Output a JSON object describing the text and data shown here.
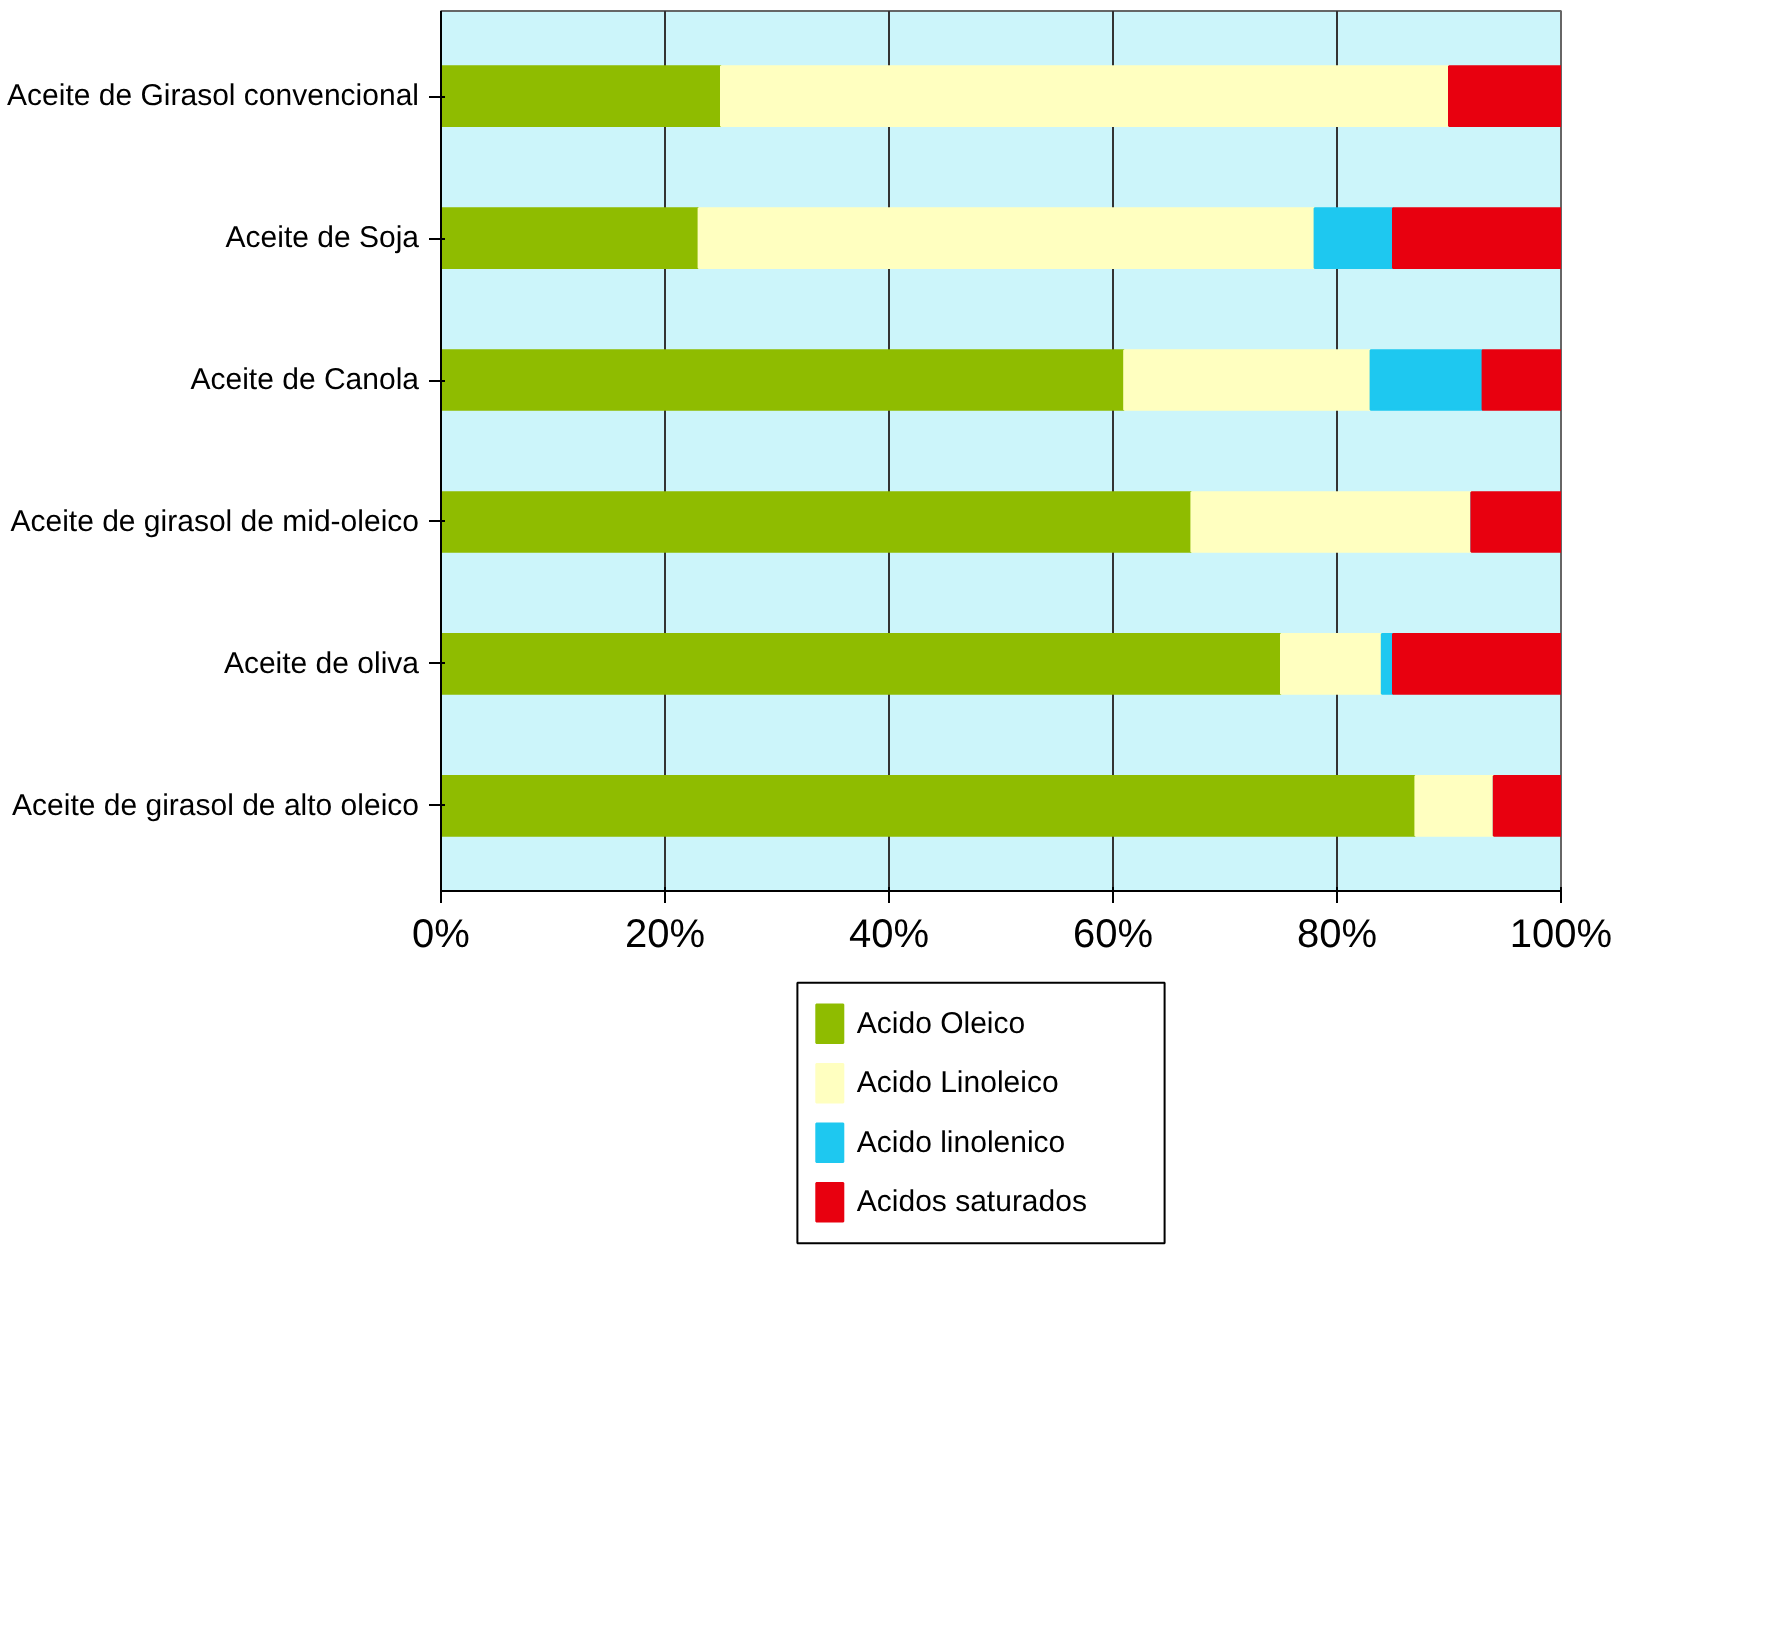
{
  "chart_data": {
    "type": "bar",
    "orientation": "horizontal",
    "stacked": true,
    "categories": [
      "Aceite de Girasol convencional",
      "Aceite de Soja",
      "Aceite de Canola",
      "Aceite de girasol de mid-oleico",
      "Aceite de oliva",
      "Aceite de girasol de alto oleico"
    ],
    "series": [
      {
        "name": "Acido Oleico",
        "color": "#8fbc00",
        "values": [
          25,
          23,
          61,
          67,
          75,
          87
        ]
      },
      {
        "name": "Acido Linoleico",
        "color": "#ffffc0",
        "values": [
          65,
          55,
          22,
          25,
          9,
          7
        ]
      },
      {
        "name": "Acido linolenico",
        "color": "#1ec8f0",
        "values": [
          0,
          7,
          10,
          0,
          1,
          0
        ]
      },
      {
        "name": "Acidos saturados",
        "color": "#e8000f",
        "values": [
          10,
          15,
          7,
          8,
          15,
          6
        ]
      }
    ],
    "xlim": [
      0,
      100
    ],
    "xticks": [
      {
        "value": 0,
        "label": "0%"
      },
      {
        "value": 20,
        "label": "20%"
      },
      {
        "value": 40,
        "label": "40%"
      },
      {
        "value": 60,
        "label": "60%"
      },
      {
        "value": 80,
        "label": "80%"
      },
      {
        "value": 100,
        "label": "100%"
      }
    ],
    "grid": "x",
    "legend": "bottom"
  }
}
